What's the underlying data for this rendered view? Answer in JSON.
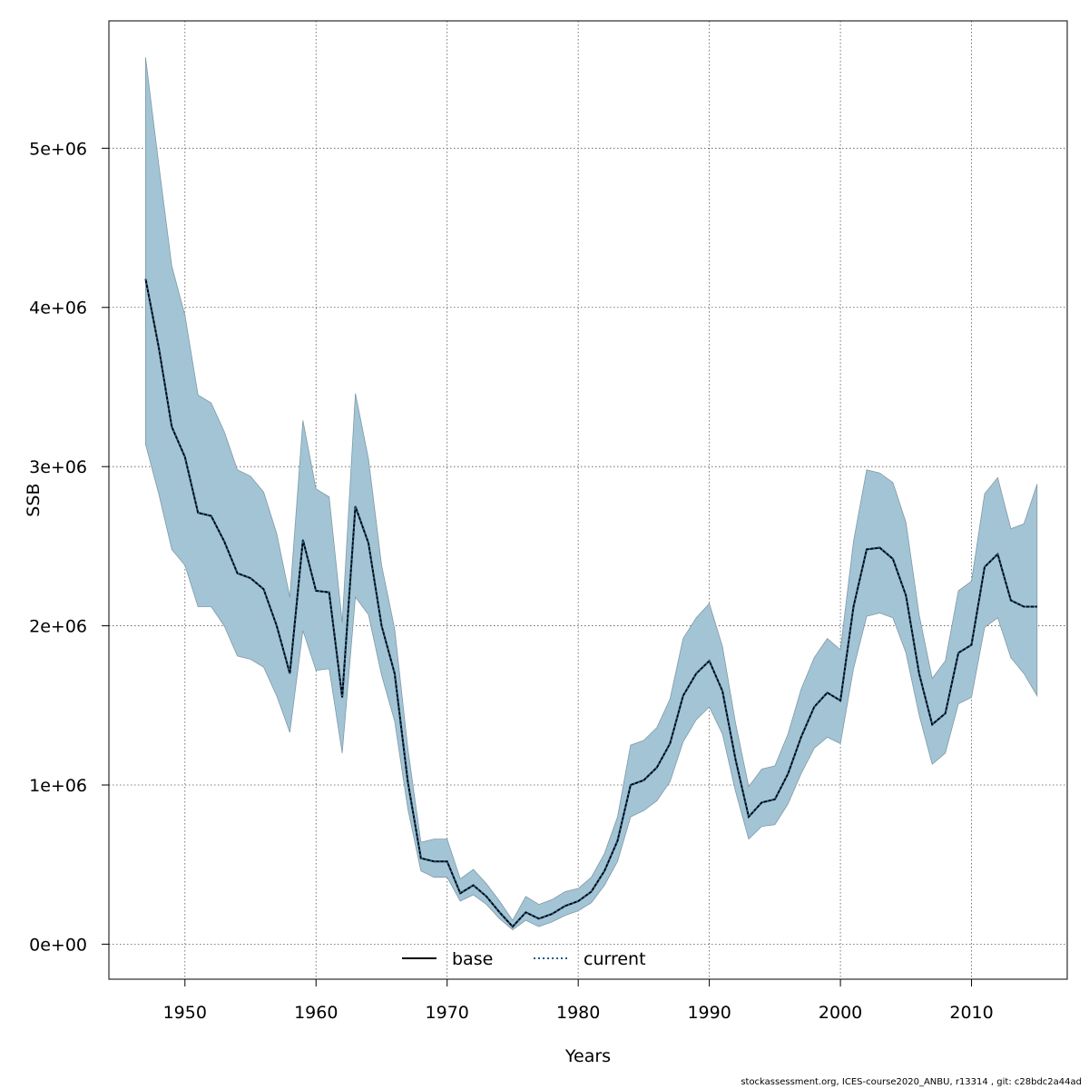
{
  "chart_data": {
    "type": "line",
    "title": "",
    "xlabel": "Years",
    "ylabel": "SSB",
    "xlim": [
      1944.2,
      2017.3
    ],
    "ylim": [
      -220000,
      5800000
    ],
    "x_ticks": [
      1950,
      1960,
      1970,
      1980,
      1990,
      2000,
      2010
    ],
    "y_ticks": [
      0,
      1000000,
      2000000,
      3000000,
      4000000,
      5000000
    ],
    "y_tick_labels": [
      "0e+00",
      "1e+06",
      "2e+06",
      "3e+06",
      "4e+06",
      "5e+06"
    ],
    "grid": true,
    "legend_position": "bottom-center",
    "band_color": "#a3c4d4",
    "band_edge_color": "#7f9aa8",
    "x": [
      1947,
      1948,
      1949,
      1950,
      1951,
      1952,
      1953,
      1954,
      1955,
      1956,
      1957,
      1958,
      1959,
      1960,
      1961,
      1962,
      1963,
      1964,
      1965,
      1966,
      1967,
      1968,
      1969,
      1970,
      1971,
      1972,
      1973,
      1974,
      1975,
      1976,
      1977,
      1978,
      1979,
      1980,
      1981,
      1982,
      1983,
      1984,
      1985,
      1986,
      1987,
      1988,
      1989,
      1990,
      1991,
      1992,
      1993,
      1994,
      1995,
      1996,
      1997,
      1998,
      1999,
      2000,
      2001,
      2002,
      2003,
      2004,
      2005,
      2006,
      2007,
      2008,
      2009,
      2010,
      2011,
      2012,
      2013,
      2014,
      2015
    ],
    "series": [
      {
        "name": "base",
        "line_style": "solid",
        "color": "#000000",
        "values": [
          4180000,
          3750000,
          3250000,
          3060000,
          2710000,
          2690000,
          2530000,
          2330000,
          2300000,
          2230000,
          2000000,
          1700000,
          2540000,
          2220000,
          2210000,
          1550000,
          2750000,
          2520000,
          2000000,
          1700000,
          1020000,
          540000,
          520000,
          520000,
          320000,
          370000,
          300000,
          200000,
          110000,
          200000,
          160000,
          190000,
          240000,
          270000,
          330000,
          460000,
          650000,
          1000000,
          1030000,
          1110000,
          1260000,
          1560000,
          1700000,
          1780000,
          1590000,
          1160000,
          800000,
          890000,
          910000,
          1070000,
          1300000,
          1490000,
          1580000,
          1530000,
          2120000,
          2480000,
          2490000,
          2420000,
          2190000,
          1700000,
          1380000,
          1450000,
          1830000,
          1880000,
          2370000,
          2450000,
          2160000,
          2120000,
          2120000
        ]
      },
      {
        "name": "current",
        "line_style": "dotted",
        "color": "#1f5a8a",
        "values": [
          4180000,
          3750000,
          3250000,
          3060000,
          2710000,
          2690000,
          2530000,
          2330000,
          2300000,
          2230000,
          2000000,
          1700000,
          2540000,
          2220000,
          2210000,
          1550000,
          2750000,
          2520000,
          2000000,
          1700000,
          1020000,
          540000,
          520000,
          520000,
          320000,
          370000,
          300000,
          200000,
          110000,
          200000,
          160000,
          190000,
          240000,
          270000,
          330000,
          460000,
          650000,
          1000000,
          1030000,
          1110000,
          1260000,
          1560000,
          1700000,
          1780000,
          1590000,
          1160000,
          800000,
          890000,
          910000,
          1070000,
          1300000,
          1490000,
          1580000,
          1530000,
          2120000,
          2480000,
          2490000,
          2420000,
          2190000,
          1700000,
          1380000,
          1450000,
          1830000,
          1880000,
          2370000,
          2450000,
          2160000,
          2120000,
          2120000
        ]
      }
    ],
    "band": {
      "upper": [
        5570000,
        4900000,
        4260000,
        3950000,
        3450000,
        3400000,
        3220000,
        2980000,
        2940000,
        2840000,
        2580000,
        2180000,
        3290000,
        2860000,
        2810000,
        2020000,
        3460000,
        3050000,
        2380000,
        1980000,
        1230000,
        640000,
        660000,
        660000,
        410000,
        470000,
        380000,
        270000,
        150000,
        300000,
        250000,
        280000,
        330000,
        350000,
        420000,
        570000,
        800000,
        1250000,
        1280000,
        1360000,
        1540000,
        1920000,
        2050000,
        2140000,
        1870000,
        1390000,
        990000,
        1100000,
        1120000,
        1320000,
        1600000,
        1800000,
        1920000,
        1850000,
        2530000,
        2980000,
        2960000,
        2900000,
        2650000,
        2070000,
        1670000,
        1780000,
        2220000,
        2280000,
        2830000,
        2930000,
        2610000,
        2640000,
        2890000
      ],
      "lower": [
        3140000,
        2830000,
        2480000,
        2380000,
        2120000,
        2120000,
        2000000,
        1810000,
        1790000,
        1740000,
        1560000,
        1330000,
        1970000,
        1720000,
        1730000,
        1200000,
        2180000,
        2070000,
        1690000,
        1400000,
        850000,
        460000,
        420000,
        420000,
        270000,
        310000,
        250000,
        160000,
        90000,
        150000,
        110000,
        140000,
        180000,
        210000,
        260000,
        370000,
        520000,
        800000,
        840000,
        900000,
        1020000,
        1270000,
        1410000,
        1490000,
        1320000,
        960000,
        660000,
        740000,
        750000,
        880000,
        1070000,
        1230000,
        1300000,
        1260000,
        1730000,
        2060000,
        2080000,
        2050000,
        1830000,
        1440000,
        1130000,
        1200000,
        1510000,
        1550000,
        1990000,
        2050000,
        1800000,
        1700000,
        1560000
      ]
    }
  },
  "footer": "stockassessment.org, ICES-course2020_ANBU, r13314 , git: c28bdc2a44ad"
}
